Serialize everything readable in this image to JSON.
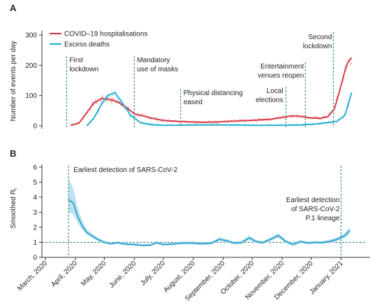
{
  "chart_data": [
    {
      "panel": "A",
      "type": "line",
      "ylabel": "Number of events per day",
      "ylim": [
        0,
        300
      ],
      "yticks": [
        0,
        100,
        200,
        300
      ],
      "legend_position": "top-left",
      "series": [
        {
          "name": "COVID–19 hospitalisations",
          "color": "#d6313f",
          "raw_color": "#f2a4ab",
          "x": [
            "2020-03-27",
            "2020-04-05",
            "2020-04-12",
            "2020-04-20",
            "2020-04-28",
            "2020-05-06",
            "2020-05-14",
            "2020-05-22",
            "2020-06-01",
            "2020-06-10",
            "2020-06-20",
            "2020-07-01",
            "2020-07-15",
            "2020-08-01",
            "2020-08-15",
            "2020-09-01",
            "2020-09-15",
            "2020-10-01",
            "2020-10-10",
            "2020-10-20",
            "2020-11-01",
            "2020-11-10",
            "2020-11-20",
            "2020-12-01",
            "2020-12-10",
            "2020-12-18",
            "2020-12-25",
            "2020-12-30",
            "2021-01-04",
            "2021-01-08",
            "2021-01-12"
          ],
          "y": [
            2,
            10,
            40,
            75,
            90,
            88,
            80,
            65,
            40,
            33,
            25,
            18,
            15,
            13,
            12,
            14,
            16,
            18,
            20,
            22,
            28,
            33,
            32,
            26,
            25,
            30,
            55,
            110,
            170,
            210,
            225
          ]
        },
        {
          "name": "Excess deaths",
          "color": "#18aed0",
          "raw_color": "#9fd7ea",
          "x": [
            "2020-04-13",
            "2020-04-20",
            "2020-04-27",
            "2020-05-04",
            "2020-05-12",
            "2020-05-20",
            "2020-05-28",
            "2020-06-08",
            "2020-06-20",
            "2020-07-01",
            "2020-07-15",
            "2020-08-01",
            "2020-08-20",
            "2020-09-10",
            "2020-10-01",
            "2020-10-20",
            "2020-11-01",
            "2020-11-20",
            "2020-12-05",
            "2020-12-20",
            "2020-12-28",
            "2021-01-05",
            "2021-01-12"
          ],
          "y": [
            0,
            25,
            65,
            100,
            110,
            75,
            35,
            10,
            4,
            2,
            2,
            3,
            3,
            3,
            2,
            2,
            2,
            3,
            6,
            12,
            15,
            35,
            110
          ]
        }
      ],
      "events": [
        {
          "date": "2020-03-23",
          "label": [
            "First",
            "lockdown"
          ]
        },
        {
          "date": "2020-06-01",
          "label": [
            "Mandatory",
            "use of masks"
          ]
        },
        {
          "date": "2020-07-19",
          "label": [
            "Physical distancing",
            "eased"
          ]
        },
        {
          "date": "2020-11-05",
          "label": [
            "Local",
            "elections"
          ]
        },
        {
          "date": "2020-11-25",
          "label": [
            "Entertainment",
            "venues reopen"
          ]
        },
        {
          "date": "2020-12-24",
          "label": [
            "Second",
            "lockdown"
          ]
        }
      ]
    },
    {
      "panel": "B",
      "type": "line",
      "ylabel": "Smoothed R",
      "ylabel_subscript": "t",
      "ylim": [
        0,
        6
      ],
      "yticks": [
        0,
        1,
        2,
        3,
        4,
        5,
        6
      ],
      "reference_line": 1,
      "band_color": "#b5def2",
      "line_color": "#1c9dc6",
      "series": [
        {
          "name": "",
          "x": [
            "2020-03-25",
            "2020-03-30",
            "2020-04-03",
            "2020-04-08",
            "2020-04-13",
            "2020-04-18",
            "2020-04-24",
            "2020-05-01",
            "2020-05-08",
            "2020-05-15",
            "2020-05-22",
            "2020-06-01",
            "2020-06-10",
            "2020-06-18",
            "2020-06-24",
            "2020-07-01",
            "2020-07-10",
            "2020-07-20",
            "2020-08-01",
            "2020-08-10",
            "2020-08-20",
            "2020-08-28",
            "2020-09-05",
            "2020-09-12",
            "2020-09-20",
            "2020-09-28",
            "2020-10-05",
            "2020-10-12",
            "2020-10-20",
            "2020-10-28",
            "2020-11-05",
            "2020-11-12",
            "2020-11-20",
            "2020-11-28",
            "2020-12-05",
            "2020-12-12",
            "2020-12-20",
            "2020-12-28",
            "2021-01-05",
            "2021-01-10"
          ],
          "y": [
            3.85,
            3.6,
            2.8,
            2.1,
            1.65,
            1.45,
            1.2,
            1.0,
            0.9,
            0.98,
            0.88,
            0.85,
            0.8,
            0.82,
            0.98,
            0.85,
            0.88,
            0.95,
            0.95,
            0.9,
            0.95,
            1.2,
            1.1,
            0.95,
            0.98,
            1.3,
            1.05,
            0.98,
            1.2,
            1.45,
            1.05,
            0.85,
            1.05,
            0.95,
            1.0,
            0.98,
            1.05,
            1.2,
            1.45,
            1.78
          ],
          "lower": [
            3.0,
            2.85,
            2.35,
            1.85,
            1.5,
            1.32,
            1.08,
            0.92,
            0.83,
            0.9,
            0.8,
            0.77,
            0.72,
            0.74,
            0.88,
            0.77,
            0.8,
            0.87,
            0.86,
            0.82,
            0.86,
            1.08,
            1.0,
            0.86,
            0.88,
            1.16,
            0.95,
            0.88,
            1.08,
            1.3,
            0.94,
            0.76,
            0.95,
            0.86,
            0.9,
            0.88,
            0.94,
            1.07,
            1.28,
            1.55
          ],
          "upper": [
            5.2,
            4.6,
            3.4,
            2.45,
            1.85,
            1.6,
            1.32,
            1.1,
            0.98,
            1.07,
            0.97,
            0.94,
            0.88,
            0.9,
            1.08,
            0.93,
            0.97,
            1.04,
            1.05,
            0.99,
            1.05,
            1.33,
            1.21,
            1.05,
            1.08,
            1.45,
            1.16,
            1.08,
            1.33,
            1.62,
            1.17,
            0.94,
            1.16,
            1.05,
            1.1,
            1.08,
            1.17,
            1.34,
            1.63,
            2.02
          ]
        }
      ],
      "events": [
        {
          "date": "2020-03-25",
          "label": [
            "Earliest detection of SARS-CoV-2"
          ]
        },
        {
          "date": "2021-01-01",
          "label": [
            "Earliest detection",
            "of SARS-CoV-2",
            "P.1 lineage"
          ]
        }
      ],
      "xtick_labels": [
        "March, 2020",
        "April, 2020",
        "May, 2020",
        "June, 2020",
        "July, 2020",
        "August, 2020",
        "September, 2020",
        "October, 2020",
        "November, 2020",
        "December, 2020",
        "January, 2021"
      ],
      "xtick_dates": [
        "2020-03-01",
        "2020-04-01",
        "2020-05-01",
        "2020-06-01",
        "2020-07-01",
        "2020-08-01",
        "2020-09-01",
        "2020-10-01",
        "2020-11-01",
        "2020-12-01",
        "2021-01-01"
      ]
    }
  ],
  "ui": {
    "title_a": "A",
    "title_b": "B",
    "legend_hosp": "COVID–19 hospitalisations",
    "legend_deaths": "Excess deaths",
    "ylabel_a": "Number of events per day",
    "ylabel_b_main": "Smoothed R",
    "ylabel_b_sub": "t"
  }
}
